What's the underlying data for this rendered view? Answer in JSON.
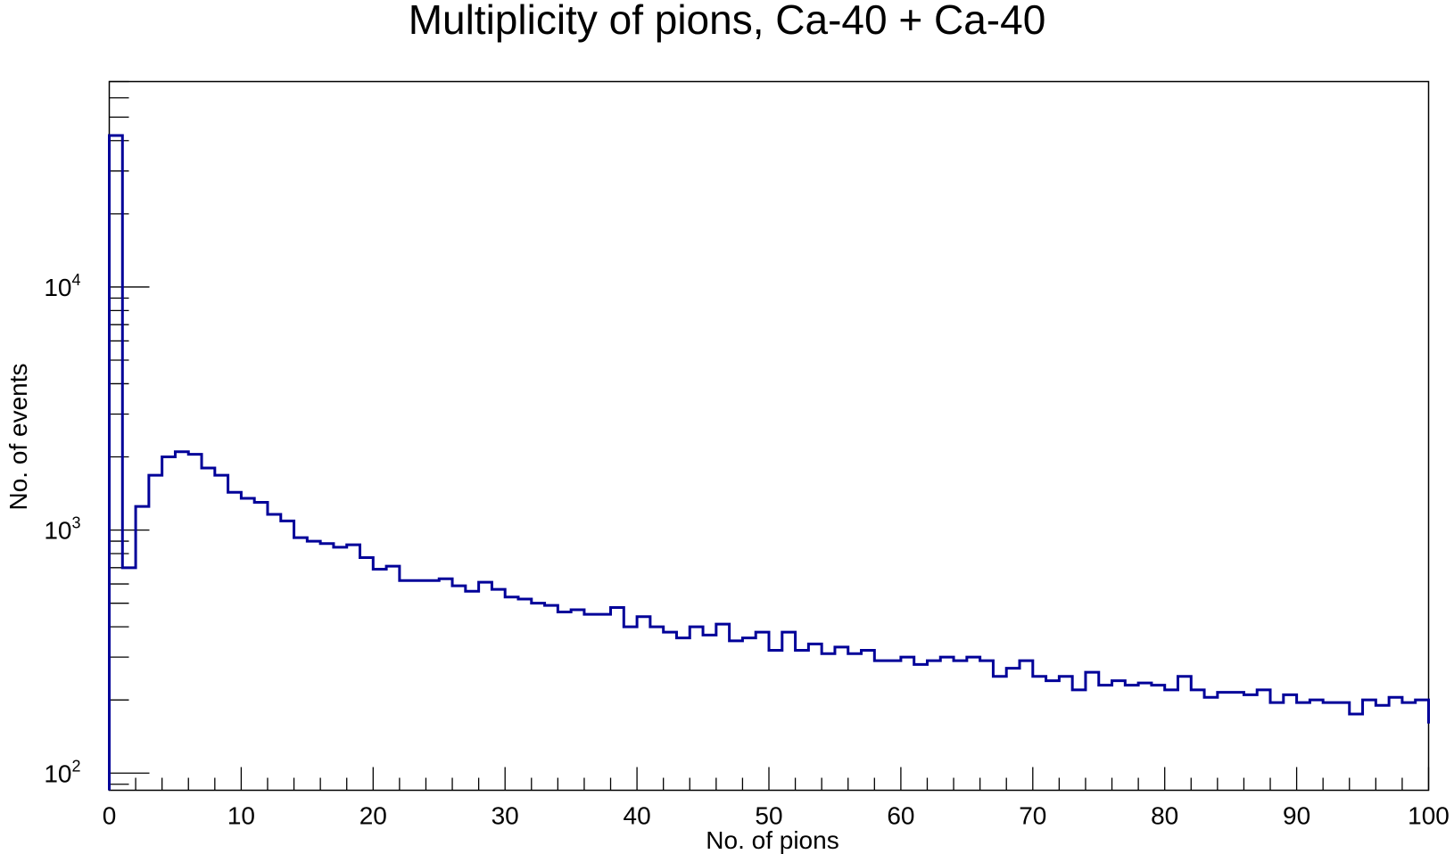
{
  "chart_data": {
    "type": "bar",
    "style": "step-histogram",
    "title": "Multiplicity of pions, Ca-40 + Ca-40",
    "xlabel": "No. of pions",
    "ylabel": "No. of events",
    "xlim": [
      0,
      100
    ],
    "ylim": [
      85,
      70000
    ],
    "y_scale": "log",
    "grid": false,
    "line_color": "#000099",
    "x_tick_labels": [
      "0",
      "10",
      "20",
      "30",
      "40",
      "50",
      "60",
      "70",
      "80",
      "90",
      "100"
    ],
    "y_tick_labels": [
      {
        "value": 100,
        "base": "10",
        "exp": "2"
      },
      {
        "value": 1000,
        "base": "10",
        "exp": "3"
      },
      {
        "value": 10000,
        "base": "10",
        "exp": "4"
      }
    ],
    "bin_width": 1,
    "values": [
      42000,
      700,
      1250,
      1680,
      2000,
      2100,
      2050,
      1800,
      1680,
      1430,
      1350,
      1300,
      1160,
      1090,
      930,
      900,
      880,
      850,
      870,
      770,
      690,
      710,
      620,
      620,
      620,
      630,
      590,
      560,
      610,
      570,
      530,
      520,
      500,
      490,
      460,
      470,
      450,
      450,
      480,
      400,
      440,
      400,
      380,
      360,
      400,
      370,
      410,
      350,
      360,
      380,
      320,
      380,
      320,
      340,
      310,
      330,
      310,
      320,
      290,
      290,
      300,
      280,
      290,
      300,
      290,
      300,
      290,
      250,
      270,
      290,
      250,
      240,
      250,
      220,
      260,
      230,
      240,
      230,
      235,
      230,
      220,
      250,
      220,
      205,
      215,
      215,
      210,
      220,
      195,
      210,
      195,
      200,
      195,
      195,
      175,
      200,
      190,
      205,
      195,
      200,
      160
    ]
  }
}
